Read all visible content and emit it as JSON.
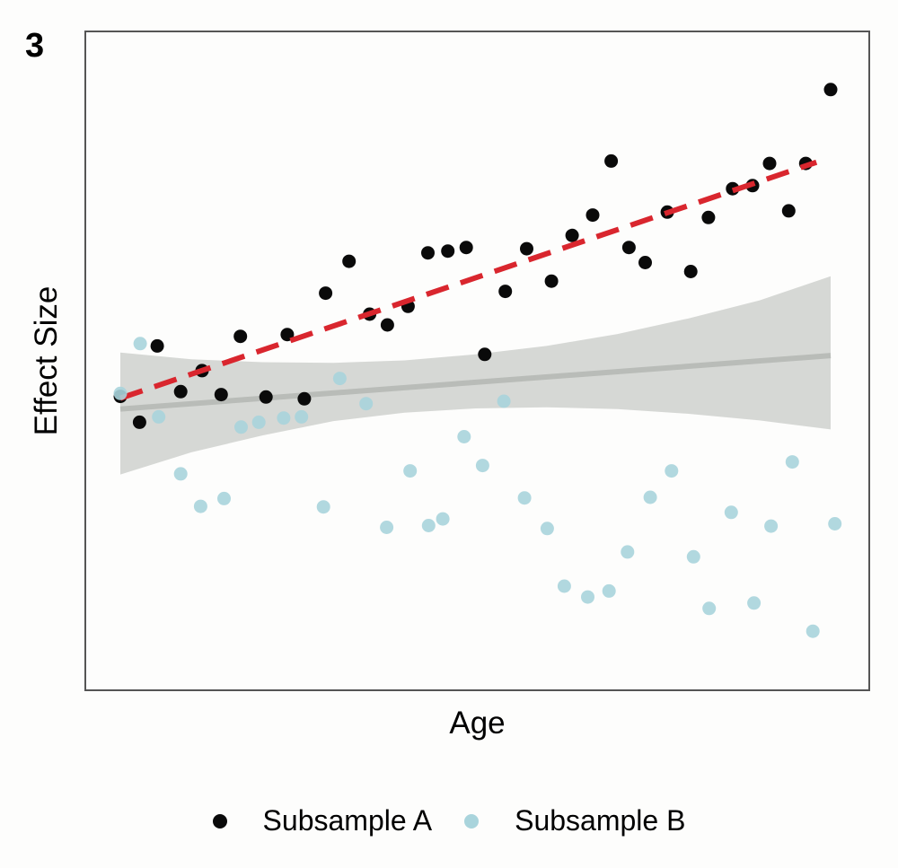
{
  "panel_label": "3",
  "colors": {
    "subsample_a": "#0a0a0a",
    "subsample_b": "#a9d4dc",
    "trend_a": "#d9262e",
    "trend_b": "#b9bcb8",
    "ribbon": "#d2d4d0",
    "frame": "#555555",
    "background": "#fdfdfc"
  },
  "chart_data": {
    "type": "scatter",
    "title": "",
    "xlabel": "Age",
    "ylabel": "Effect Size",
    "xlim": [
      0,
      100
    ],
    "ylim": [
      0,
      100
    ],
    "grid": false,
    "ticks_shown": false,
    "legend_position": "bottom",
    "series": [
      {
        "name": "Subsample A",
        "points": [
          {
            "x": 0.0,
            "y": 44.0
          },
          {
            "x": 2.7,
            "y": 39.7
          },
          {
            "x": 5.2,
            "y": 52.4
          },
          {
            "x": 8.5,
            "y": 44.8
          },
          {
            "x": 11.5,
            "y": 48.3
          },
          {
            "x": 14.2,
            "y": 44.3
          },
          {
            "x": 16.9,
            "y": 54.0
          },
          {
            "x": 20.5,
            "y": 43.9
          },
          {
            "x": 23.5,
            "y": 54.3
          },
          {
            "x": 25.9,
            "y": 43.6
          },
          {
            "x": 28.9,
            "y": 61.2
          },
          {
            "x": 32.2,
            "y": 66.5
          },
          {
            "x": 35.1,
            "y": 57.7
          },
          {
            "x": 37.6,
            "y": 55.9
          },
          {
            "x": 40.5,
            "y": 59.0
          },
          {
            "x": 43.3,
            "y": 67.9
          },
          {
            "x": 46.1,
            "y": 68.2
          },
          {
            "x": 48.7,
            "y": 68.8
          },
          {
            "x": 51.3,
            "y": 51.0
          },
          {
            "x": 54.2,
            "y": 61.5
          },
          {
            "x": 57.2,
            "y": 68.6
          },
          {
            "x": 60.7,
            "y": 63.2
          },
          {
            "x": 63.6,
            "y": 70.8
          },
          {
            "x": 66.5,
            "y": 74.2
          },
          {
            "x": 69.1,
            "y": 83.2
          },
          {
            "x": 71.6,
            "y": 68.8
          },
          {
            "x": 73.9,
            "y": 66.3
          },
          {
            "x": 77.0,
            "y": 74.7
          },
          {
            "x": 80.3,
            "y": 64.8
          },
          {
            "x": 82.8,
            "y": 73.8
          },
          {
            "x": 86.2,
            "y": 78.6
          },
          {
            "x": 89.0,
            "y": 79.1
          },
          {
            "x": 91.4,
            "y": 82.8
          },
          {
            "x": 94.1,
            "y": 74.9
          },
          {
            "x": 96.5,
            "y": 82.8
          },
          {
            "x": 100.0,
            "y": 95.1
          }
        ]
      },
      {
        "name": "Subsample B",
        "points": [
          {
            "x": 0.0,
            "y": 44.5
          },
          {
            "x": 2.8,
            "y": 52.8
          },
          {
            "x": 5.4,
            "y": 40.6
          },
          {
            "x": 8.5,
            "y": 31.1
          },
          {
            "x": 11.3,
            "y": 25.7
          },
          {
            "x": 14.6,
            "y": 27.0
          },
          {
            "x": 17.0,
            "y": 38.9
          },
          {
            "x": 19.5,
            "y": 39.7
          },
          {
            "x": 23.0,
            "y": 40.4
          },
          {
            "x": 25.5,
            "y": 40.6
          },
          {
            "x": 28.6,
            "y": 25.6
          },
          {
            "x": 30.9,
            "y": 47.0
          },
          {
            "x": 34.6,
            "y": 42.8
          },
          {
            "x": 37.5,
            "y": 22.2
          },
          {
            "x": 40.8,
            "y": 31.6
          },
          {
            "x": 43.4,
            "y": 22.5
          },
          {
            "x": 45.4,
            "y": 23.6
          },
          {
            "x": 48.4,
            "y": 37.3
          },
          {
            "x": 51.0,
            "y": 32.5
          },
          {
            "x": 54.0,
            "y": 43.2
          },
          {
            "x": 56.9,
            "y": 27.1
          },
          {
            "x": 60.1,
            "y": 22.0
          },
          {
            "x": 62.5,
            "y": 12.4
          },
          {
            "x": 65.8,
            "y": 10.6
          },
          {
            "x": 68.8,
            "y": 11.6
          },
          {
            "x": 71.4,
            "y": 18.1
          },
          {
            "x": 74.6,
            "y": 27.2
          },
          {
            "x": 77.6,
            "y": 31.6
          },
          {
            "x": 80.7,
            "y": 17.3
          },
          {
            "x": 82.9,
            "y": 8.7
          },
          {
            "x": 86.0,
            "y": 24.7
          },
          {
            "x": 89.2,
            "y": 9.6
          },
          {
            "x": 91.6,
            "y": 22.4
          },
          {
            "x": 94.6,
            "y": 33.1
          },
          {
            "x": 97.5,
            "y": 4.9
          },
          {
            "x": 100.6,
            "y": 22.8
          }
        ]
      }
    ],
    "trend_lines": [
      {
        "series": "Subsample A",
        "style": "dashed",
        "x": [
          0,
          98
        ],
        "y": [
          43.7,
          83.0
        ]
      },
      {
        "series": "Subsample B",
        "style": "solid",
        "x": [
          0,
          100
        ],
        "y": [
          41.9,
          50.8
        ]
      }
    ],
    "confidence_band": {
      "series": "Subsample B",
      "x": [
        0,
        10,
        20,
        30,
        40,
        50,
        60,
        70,
        80,
        90,
        100
      ],
      "upper": [
        51.3,
        50.2,
        49.7,
        49.6,
        50.0,
        51.0,
        52.4,
        54.4,
        57.0,
        60.0,
        64.0
      ],
      "lower": [
        31.0,
        34.7,
        37.5,
        39.9,
        41.3,
        42.0,
        42.2,
        41.9,
        41.1,
        40.0,
        38.5
      ]
    }
  },
  "legend": {
    "items": [
      {
        "label": "Subsample A"
      },
      {
        "label": "Subsample B"
      }
    ]
  }
}
